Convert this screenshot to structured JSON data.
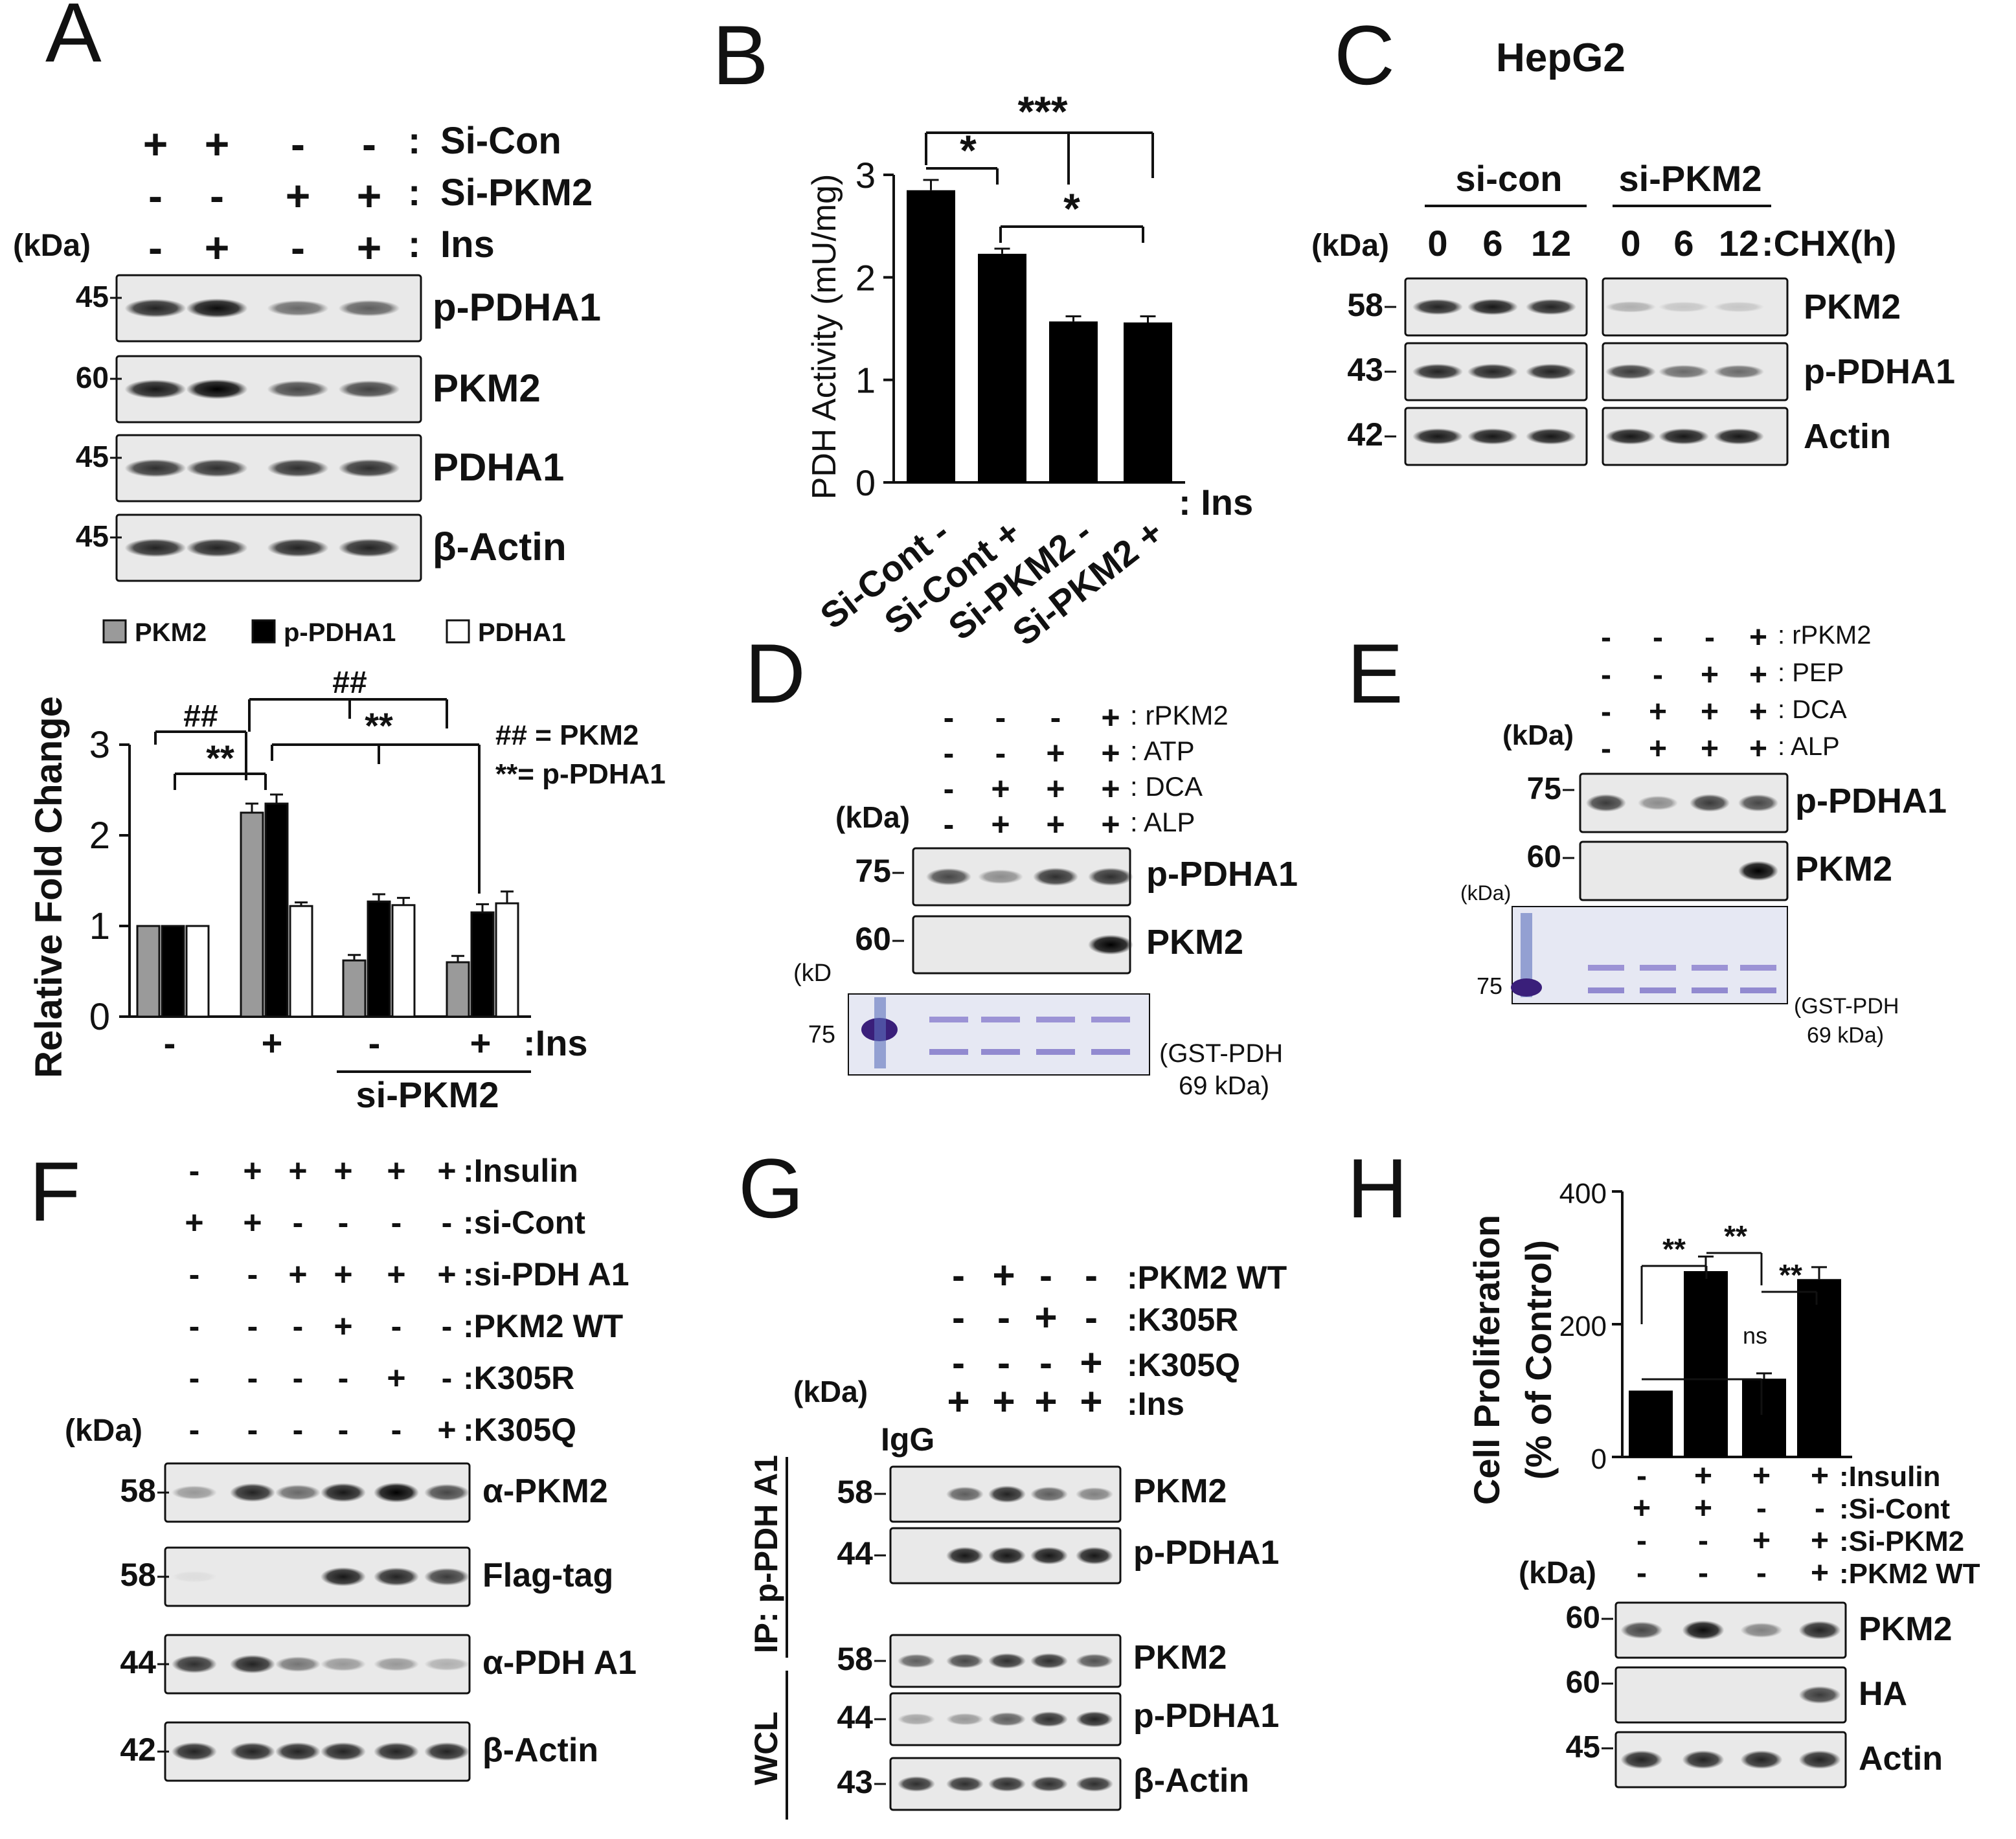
{
  "panels": {
    "A": {
      "letter": "A",
      "rows": [
        {
          "label": "Si-Con",
          "signs": [
            "+",
            "+",
            "-",
            "-"
          ]
        },
        {
          "label": "Si-PKM2",
          "signs": [
            "-",
            "-",
            "+",
            "+"
          ]
        },
        {
          "label": "Ins",
          "signs": [
            "-",
            "+",
            "-",
            "+"
          ]
        }
      ],
      "kda": "(kDa)",
      "blots": [
        {
          "label": "p-PDHA1",
          "mw": "45",
          "intensity": [
            0.85,
            0.95,
            0.55,
            0.6
          ]
        },
        {
          "label": "PKM2",
          "mw": "60",
          "intensity": [
            0.9,
            1.0,
            0.7,
            0.72
          ]
        },
        {
          "label": "PDHA1",
          "mw": "45",
          "intensity": [
            0.8,
            0.8,
            0.8,
            0.8
          ]
        },
        {
          "label": "β-Actin",
          "mw": "45",
          "intensity": [
            0.85,
            0.85,
            0.85,
            0.85
          ]
        }
      ]
    },
    "A_chart": {
      "ylabel": "Relative Fold Change",
      "legend": [
        "PKM2",
        "p-PDHA1",
        "PDHA1"
      ],
      "sig_top": "##",
      "sig_top2": "##",
      "sig_star": "**",
      "sig_star2": "**",
      "notes": [
        "## = PKM2",
        "**= p-PDHA1"
      ],
      "ins_signs": [
        "-",
        "+",
        "-",
        "+"
      ],
      "ins_label": ":Ins",
      "group_label": "si-PKM2"
    },
    "B": {
      "letter": "B",
      "ylabel": "PDH Activity (mU/mg)",
      "sig": [
        "***",
        "*",
        "*"
      ],
      "signs": [
        "-",
        "+",
        "-",
        "+"
      ],
      "ins_label": ": Ins"
    },
    "C": {
      "letter": "C",
      "title": "HepG2",
      "group1": "si-con",
      "group2": "si-PKM2",
      "kda": "(kDa)",
      "times": [
        "0",
        "6",
        "12",
        "0",
        "6",
        "12"
      ],
      "time_label": ":CHX(h)",
      "blots": [
        {
          "label": "PKM2",
          "mw": "58",
          "intensity": [
            0.85,
            0.9,
            0.85,
            0.25,
            0.15,
            0.15
          ]
        },
        {
          "label": "p-PDHA1",
          "mw": "43",
          "intensity": [
            0.85,
            0.85,
            0.85,
            0.75,
            0.55,
            0.55
          ]
        },
        {
          "label": "Actin",
          "mw": "42",
          "intensity": [
            0.9,
            0.9,
            0.9,
            0.9,
            0.9,
            0.9
          ]
        }
      ]
    },
    "D": {
      "letter": "D",
      "rows": [
        {
          "label": ": rPKM2",
          "signs": [
            "-",
            "-",
            "-",
            "+"
          ]
        },
        {
          "label": ": ATP",
          "signs": [
            "-",
            "-",
            "+",
            "+"
          ]
        },
        {
          "label": ": DCA",
          "signs": [
            "-",
            "+",
            "+",
            "+"
          ]
        },
        {
          "label": ": ALP",
          "signs": [
            "-",
            "+",
            "+",
            "+"
          ]
        }
      ],
      "kda": "(kDa)",
      "blots": [
        {
          "label": "p-PDHA1",
          "mw": "75",
          "intensity": [
            0.7,
            0.4,
            0.8,
            0.8
          ]
        },
        {
          "label": "PKM2",
          "mw": "60",
          "intensity": [
            0,
            0,
            0,
            1.0
          ]
        }
      ],
      "gel_kda": "(kD",
      "gel_mw": "75",
      "gel_note1": "(GST-PDH",
      "gel_note2": "69 kDa)"
    },
    "E": {
      "letter": "E",
      "rows": [
        {
          "label": ": rPKM2",
          "signs": [
            "-",
            "-",
            "-",
            "+"
          ]
        },
        {
          "label": ": PEP",
          "signs": [
            "-",
            "-",
            "+",
            "+"
          ]
        },
        {
          "label": ": DCA",
          "signs": [
            "-",
            "+",
            "+",
            "+"
          ]
        },
        {
          "label": ": ALP",
          "signs": [
            "-",
            "+",
            "+",
            "+"
          ]
        }
      ],
      "kda": "(kDa)",
      "blots": [
        {
          "label": "p-PDHA1",
          "mw": "75",
          "intensity": [
            0.75,
            0.4,
            0.75,
            0.7
          ]
        },
        {
          "label": "PKM2",
          "mw": "60",
          "intensity": [
            0,
            0,
            0,
            1.0
          ]
        }
      ],
      "gel_kda": "(kDa)",
      "gel_mw": "75",
      "gel_note1": "(GST-PDH",
      "gel_note2": "69 kDa)"
    },
    "F": {
      "letter": "F",
      "rows": [
        {
          "label": ":Insulin",
          "signs": [
            "-",
            "+",
            "+",
            "+",
            "+",
            "+"
          ]
        },
        {
          "label": ":si-Cont",
          "signs": [
            "+",
            "+",
            "-",
            "-",
            "-",
            "-"
          ]
        },
        {
          "label": ":si-PDH A1",
          "signs": [
            "-",
            "-",
            "+",
            "+",
            "+",
            "+"
          ]
        },
        {
          "label": ":PKM2 WT",
          "signs": [
            "-",
            "-",
            "-",
            "+",
            "-",
            "-"
          ]
        },
        {
          "label": ":K305R",
          "signs": [
            "-",
            "-",
            "-",
            "-",
            "+",
            "-"
          ]
        },
        {
          "label": ":K305Q",
          "signs": [
            "-",
            "-",
            "-",
            "-",
            "-",
            "+"
          ]
        }
      ],
      "kda": "(kDa)",
      "blots": [
        {
          "label": "α-PKM2",
          "mw": "58",
          "intensity": [
            0.35,
            0.85,
            0.55,
            0.9,
            1.0,
            0.7
          ]
        },
        {
          "label": "Flag-tag",
          "mw": "58",
          "intensity": [
            0.05,
            0,
            0,
            0.9,
            0.85,
            0.75
          ]
        },
        {
          "label": "α-PDH A1",
          "mw": "44",
          "intensity": [
            0.8,
            0.85,
            0.5,
            0.35,
            0.35,
            0.25
          ]
        },
        {
          "label": "β-Actin",
          "mw": "42",
          "intensity": [
            0.85,
            0.85,
            0.85,
            0.85,
            0.85,
            0.85
          ]
        }
      ]
    },
    "G": {
      "letter": "G",
      "rows": [
        {
          "label": ":PKM2 WT",
          "signs": [
            "-",
            "+",
            "-",
            "-"
          ]
        },
        {
          "label": ":K305R",
          "signs": [
            "-",
            "-",
            "+",
            "-"
          ]
        },
        {
          "label": ":K305Q",
          "signs": [
            "-",
            "-",
            "-",
            "+"
          ]
        },
        {
          "label": ":Ins",
          "signs": [
            "+",
            "+",
            "+",
            "+"
          ]
        }
      ],
      "kda": "(kDa)",
      "igg": "IgG",
      "ip_label": "IP: p-PDH A1",
      "wcl_label": "WCL",
      "ip_blots": [
        {
          "label": "PKM2",
          "mw": "58",
          "intensity": [
            0,
            0.6,
            0.85,
            0.6,
            0.45
          ]
        },
        {
          "label": "p-PDHA1",
          "mw": "44",
          "intensity": [
            0,
            0.9,
            0.9,
            0.9,
            0.9
          ]
        }
      ],
      "wcl_blots": [
        {
          "label": "PKM2",
          "mw": "58",
          "intensity": [
            0.6,
            0.7,
            0.8,
            0.8,
            0.65
          ]
        },
        {
          "label": "p-PDHA1",
          "mw": "44",
          "intensity": [
            0.3,
            0.35,
            0.6,
            0.8,
            0.85
          ]
        },
        {
          "label": "β-Actin",
          "mw": "43",
          "intensity": [
            0.8,
            0.8,
            0.8,
            0.8,
            0.8
          ]
        }
      ]
    },
    "H": {
      "letter": "H",
      "ylabel1": "Cell Proliferation",
      "ylabel2": "(% of Control)",
      "sig": [
        "**",
        "**",
        "**",
        "ns"
      ],
      "rows": [
        {
          "label": ":Insulin",
          "signs": [
            "-",
            "+",
            "+",
            "+"
          ]
        },
        {
          "label": ":Si-Cont",
          "signs": [
            "+",
            "+",
            "-",
            "-"
          ]
        },
        {
          "label": ":Si-PKM2",
          "signs": [
            "-",
            "-",
            "+",
            "+"
          ]
        },
        {
          "label": ":PKM2 WT",
          "signs": [
            "-",
            "-",
            "-",
            "+"
          ]
        }
      ],
      "kda": "(kDa)",
      "blots": [
        {
          "label": "PKM2",
          "mw": "60",
          "intensity": [
            0.7,
            0.95,
            0.45,
            0.85
          ]
        },
        {
          "label": "HA",
          "mw": "60",
          "intensity": [
            0,
            0,
            0,
            0.75
          ]
        },
        {
          "label": "Actin",
          "mw": "45",
          "intensity": [
            0.85,
            0.85,
            0.85,
            0.85
          ]
        }
      ]
    }
  },
  "chart_data": [
    {
      "panel": "A",
      "type": "bar",
      "ylabel": "Relative Fold Change",
      "ylim": [
        0,
        3
      ],
      "yticks": [
        0,
        1,
        2,
        3
      ],
      "categories": [
        "-",
        "+",
        "-",
        "+"
      ],
      "series": [
        {
          "name": "PKM2",
          "color": "#9a9a9a",
          "values": [
            1.0,
            2.25,
            0.62,
            0.6
          ],
          "errors": [
            0,
            0.1,
            0.06,
            0.07
          ]
        },
        {
          "name": "p-PDHA1",
          "color": "#000000",
          "values": [
            1.0,
            2.35,
            1.27,
            1.15
          ],
          "errors": [
            0,
            0.1,
            0.08,
            0.09
          ]
        },
        {
          "name": "PDHA1",
          "color": "#ffffff",
          "values": [
            1.0,
            1.22,
            1.23,
            1.25
          ],
          "errors": [
            0,
            0.04,
            0.08,
            0.13
          ]
        }
      ]
    },
    {
      "panel": "B",
      "type": "bar",
      "ylabel": "PDH Activity (mU/mg)",
      "ylim": [
        0,
        3
      ],
      "yticks": [
        0,
        1,
        2,
        3
      ],
      "categories": [
        "Si-Cont",
        "Si-Cont",
        "Si-PKM2",
        "Si-PKM2"
      ],
      "series": [
        {
          "color": "#000000",
          "values": [
            2.85,
            2.23,
            1.57,
            1.56
          ],
          "errors": [
            0.1,
            0.05,
            0.05,
            0.06
          ]
        }
      ]
    },
    {
      "panel": "H",
      "type": "bar",
      "ylabel": "Cell Proliferation (% of Control)",
      "ylim": [
        0,
        400
      ],
      "yticks": [
        0,
        200,
        400
      ],
      "series": [
        {
          "color": "#000000",
          "values": [
            100,
            280,
            118,
            268
          ],
          "errors": [
            0,
            22,
            8,
            18
          ]
        }
      ]
    }
  ]
}
